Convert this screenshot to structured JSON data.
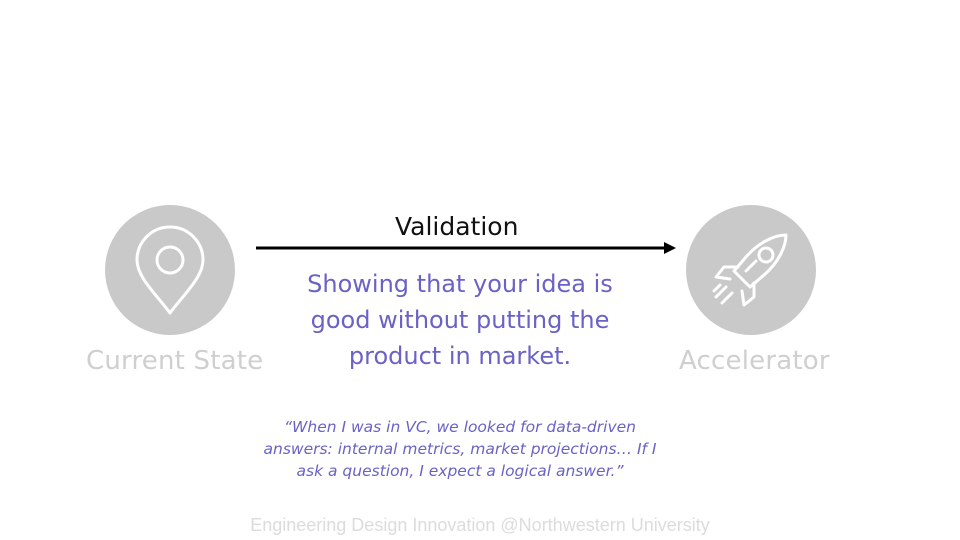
{
  "nodes": {
    "start": {
      "label": "Current State",
      "icon": "map-pin-icon"
    },
    "end": {
      "label": "Accelerator",
      "icon": "rocket-icon"
    }
  },
  "arrow": {
    "title": "Validation"
  },
  "definition": "Showing that your idea is good without putting the product in market.",
  "quote": "“When I was in VC, we looked for data-driven answers: internal metrics, market projections… If I ask a question, I expect a logical answer.”",
  "footer": "Engineering Design Innovation @Northwestern University",
  "colors": {
    "circle_fill": "#c9c9c9",
    "icon_stroke": "#ffffff",
    "accent_text": "#6a62c6",
    "muted_label": "#cfcfcf",
    "arrow": "#000000"
  }
}
